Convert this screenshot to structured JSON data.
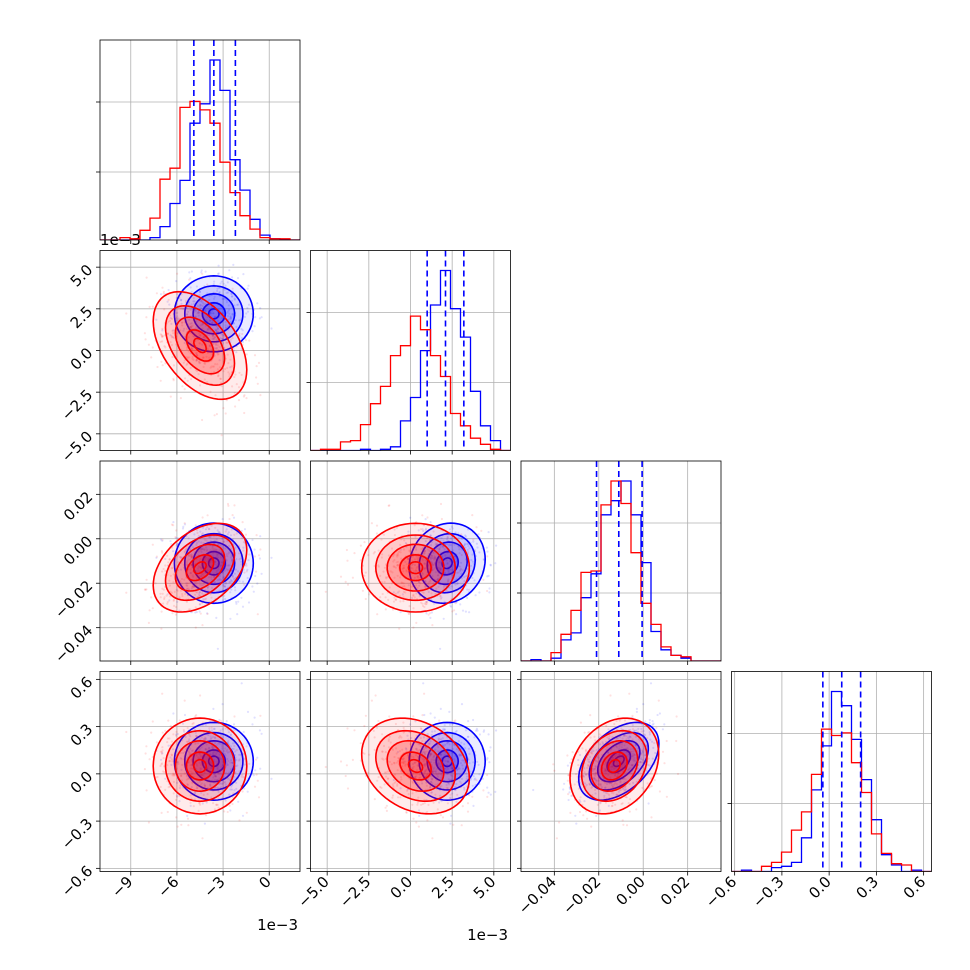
{
  "chart_data": {
    "type": "corner",
    "series": [
      {
        "name": "",
        "color": "#0000ff"
      },
      {
        "name": "",
        "color": "#ff0000"
      }
    ],
    "parameters": [
      {
        "range": [
          -11,
          2
        ],
        "ticks": [
          -9,
          -6,
          -3,
          0
        ],
        "tick_labels": [
          "−9",
          "−6",
          "−3",
          "0"
        ],
        "offset": "1e−3",
        "blue": {
          "mean": -3.6,
          "sd": 1.35,
          "quantiles": [
            -4.9,
            -3.6,
            -2.2
          ]
        },
        "red": {
          "mean": -4.5,
          "sd": 1.6
        }
      },
      {
        "range": [
          -6,
          6
        ],
        "ticks": [
          -5.0,
          -2.5,
          0.0,
          2.5,
          5.0
        ],
        "tick_labels": [
          "−5.0",
          "−2.5",
          "0.0",
          "2.5",
          "5.0"
        ],
        "offset": "1e−3",
        "blue": {
          "mean": 2.2,
          "sd": 1.2,
          "quantiles": [
            1.0,
            2.1,
            3.2
          ]
        },
        "red": {
          "mean": 0.3,
          "sd": 1.7
        }
      },
      {
        "range": [
          -0.055,
          0.035
        ],
        "ticks": [
          -0.04,
          -0.02,
          0.0,
          0.02
        ],
        "tick_labels": [
          "−0.04",
          "−0.02",
          "0.00",
          "0.02"
        ],
        "offset": "",
        "blue": {
          "mean": -0.011,
          "sd": 0.0095,
          "quantiles": [
            -0.021,
            -0.011,
            -0.0005
          ]
        },
        "red": {
          "mean": -0.013,
          "sd": 0.0105
        }
      },
      {
        "range": [
          -0.62,
          0.65
        ],
        "ticks": [
          -0.6,
          -0.3,
          0.0,
          0.3,
          0.6
        ],
        "tick_labels": [
          "−0.6",
          "−0.3",
          "0.0",
          "0.3",
          "0.6"
        ],
        "offset": "",
        "blue": {
          "mean": 0.08,
          "sd": 0.13,
          "quantiles": [
            -0.04,
            0.08,
            0.2
          ]
        },
        "red": {
          "mean": 0.05,
          "sd": 0.16
        }
      }
    ],
    "correlations": {
      "blue": [
        [
          1,
          0,
          0,
          0
        ],
        [
          0,
          1,
          0.1,
          0
        ],
        [
          0,
          0.1,
          1,
          0.45
        ],
        [
          0,
          0,
          0.45,
          1
        ]
      ],
      "red": [
        [
          1,
          -0.45,
          0.4,
          0
        ],
        [
          -0.45,
          1,
          0,
          -0.25
        ],
        [
          0.4,
          0,
          1,
          0.25
        ],
        [
          0,
          -0.25,
          0.25,
          1
        ]
      ]
    },
    "grid": true,
    "quantile_line_style": "dashed",
    "samples_per_series": 700
  }
}
